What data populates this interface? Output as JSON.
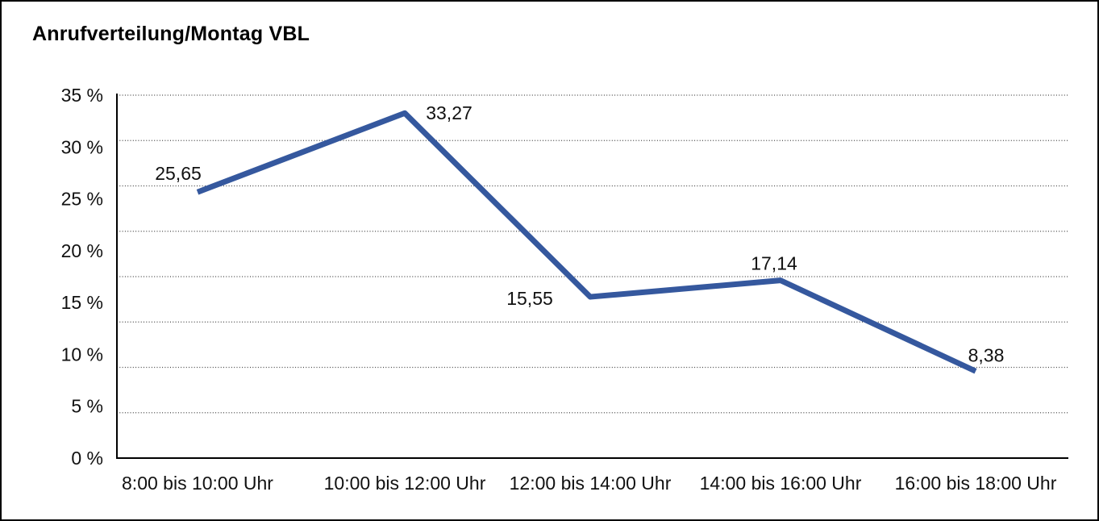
{
  "title": "Anrufverteilung/Montag VBL",
  "chart_data": {
    "type": "line",
    "title": "Anrufverteilung/Montag VBL",
    "categories": [
      "8:00 bis 10:00 Uhr",
      "10:00 bis 12:00 Uhr",
      "12:00 bis 14:00 Uhr",
      "14:00 bis 16:00 Uhr",
      "16:00 bis 18:00 Uhr"
    ],
    "values": [
      25.65,
      33.27,
      15.55,
      17.14,
      8.38
    ],
    "point_labels": [
      "25,65",
      "33,27",
      "15,55",
      "17,14",
      "8,38"
    ],
    "y_tick_labels": [
      "0 %",
      "5 %",
      "10 %",
      "15 %",
      "20 %",
      "25 %",
      "30 %",
      "35 %"
    ],
    "y_tick_step": 5,
    "ylim": [
      0,
      35
    ],
    "xlabel": "",
    "ylabel": "",
    "legend": "none",
    "grid": "horizontal dotted",
    "line_color": "#35589e",
    "axis_color": "#000000",
    "text_color": "#111111",
    "background_color": "#ffffff"
  }
}
